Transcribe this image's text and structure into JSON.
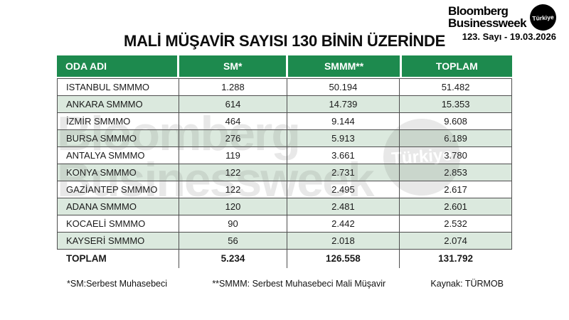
{
  "masthead": {
    "logo_line1": "Bloomberg",
    "logo_line2": "Businessweek",
    "badge": "Türkiye",
    "issue": "123. Sayı - 19.03.2026"
  },
  "title": "MALİ MÜŞAVİR SAYISI 130 BİNİN ÜZERİNDE",
  "table": {
    "columns": [
      "ODA ADI",
      "SM*",
      "SMMM**",
      "TOPLAM"
    ],
    "rows": [
      [
        "ISTANBUL SMMMO",
        "1.288",
        "50.194",
        "51.482"
      ],
      [
        "ANKARA SMMMO",
        "614",
        "14.739",
        "15.353"
      ],
      [
        "İZMİR SMMMO",
        "464",
        "9.144",
        "9.608"
      ],
      [
        "BURSA SMMMO",
        "276",
        "5.913",
        "6.189"
      ],
      [
        "ANTALYA SMMMO",
        "119",
        "3.661",
        "3.780"
      ],
      [
        "KONYA SMMMO",
        "122",
        "2.731",
        "2.853"
      ],
      [
        "GAZİANTEP SMMMO",
        "122",
        "2.495",
        "2.617"
      ],
      [
        "ADANA SMMMO",
        "120",
        "2.481",
        "2.601"
      ],
      [
        "KOCAELİ SMMMO",
        "90",
        "2.442",
        "2.532"
      ],
      [
        "KAYSERİ SMMMO",
        "56",
        "2.018",
        "2.074"
      ]
    ],
    "total_row": [
      "TOPLAM",
      "5.234",
      "126.558",
      "131.792"
    ]
  },
  "footnotes": {
    "sm": "*SM:Serbest Muhasebeci",
    "smmm": "**SMMM: Serbest Muhasebeci Mali Müşavir",
    "source": "Kaynak: TÜRMOB"
  },
  "watermark": {
    "line1": "Bloomberg",
    "line2": "Businessweek",
    "badge": "Türkiye"
  },
  "colors": {
    "header_green": "#1d8a4e",
    "row_alt": "#dbe9de",
    "border": "#4e4e4e",
    "badge_bg": "#000000"
  },
  "chart_data": {
    "type": "table",
    "title": "MALİ MÜŞAVİR SAYISI 130 BİNİN ÜZERİNDE",
    "columns": [
      "ODA ADI",
      "SM*",
      "SMMM**",
      "TOPLAM"
    ],
    "rows": [
      {
        "oda_adi": "ISTANBUL SMMMO",
        "sm": 1288,
        "smmm": 50194,
        "toplam": 51482
      },
      {
        "oda_adi": "ANKARA SMMMO",
        "sm": 614,
        "smmm": 14739,
        "toplam": 15353
      },
      {
        "oda_adi": "İZMİR SMMMO",
        "sm": 464,
        "smmm": 9144,
        "toplam": 9608
      },
      {
        "oda_adi": "BURSA SMMMO",
        "sm": 276,
        "smmm": 5913,
        "toplam": 6189
      },
      {
        "oda_adi": "ANTALYA SMMMO",
        "sm": 119,
        "smmm": 3661,
        "toplam": 3780
      },
      {
        "oda_adi": "KONYA SMMMO",
        "sm": 122,
        "smmm": 2731,
        "toplam": 2853
      },
      {
        "oda_adi": "GAZİANTEP SMMMO",
        "sm": 122,
        "smmm": 2495,
        "toplam": 2617
      },
      {
        "oda_adi": "ADANA SMMMO",
        "sm": 120,
        "smmm": 2481,
        "toplam": 2601
      },
      {
        "oda_adi": "KOCAELİ SMMMO",
        "sm": 90,
        "smmm": 2442,
        "toplam": 2532
      },
      {
        "oda_adi": "KAYSERİ SMMMO",
        "sm": 56,
        "smmm": 2018,
        "toplam": 2074
      }
    ],
    "total": {
      "oda_adi": "TOPLAM",
      "sm": 5234,
      "smmm": 126558,
      "toplam": 131792
    },
    "source": "Kaynak: TÜRMOB"
  }
}
